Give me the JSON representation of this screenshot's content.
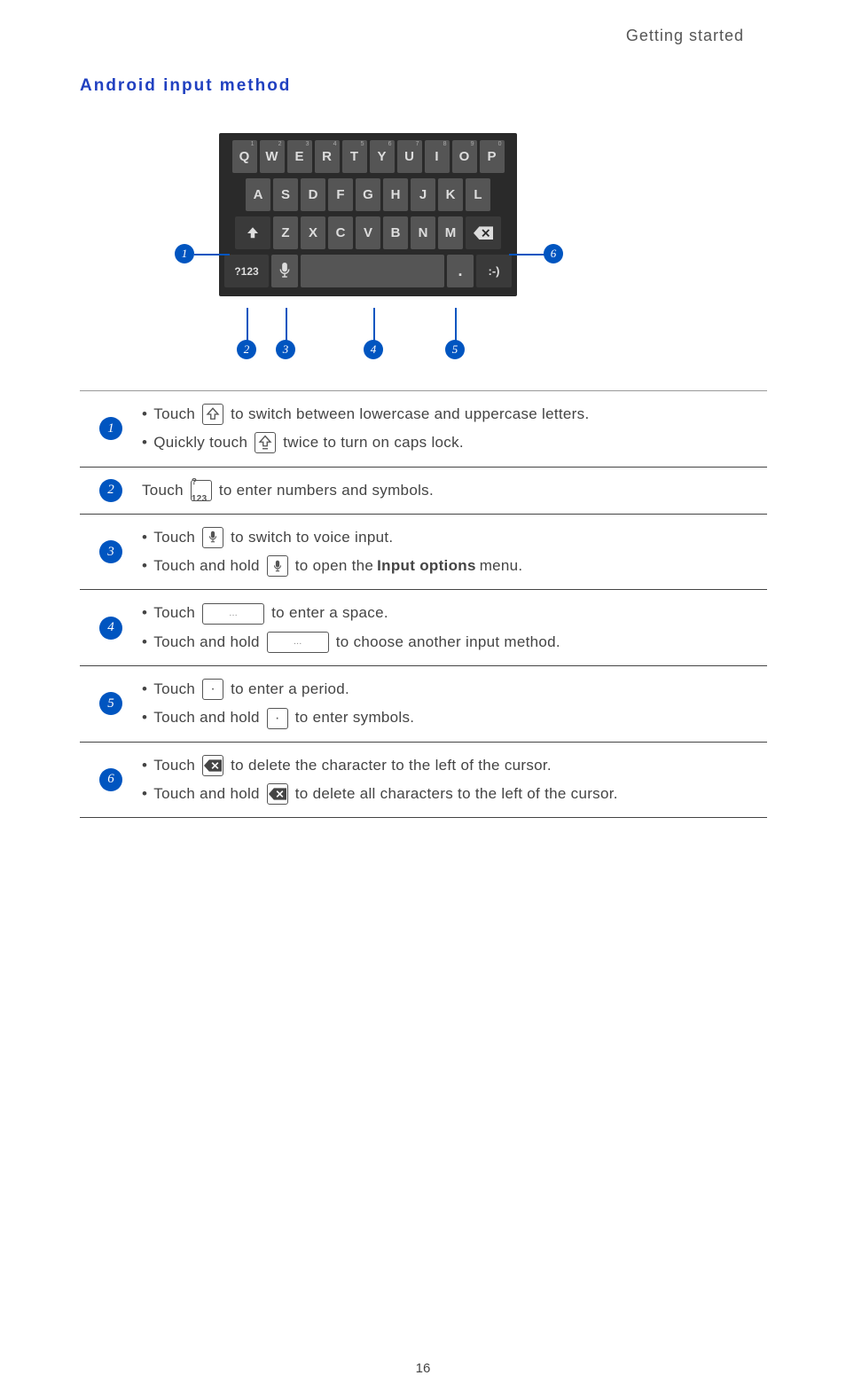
{
  "header": {
    "label": "Getting started"
  },
  "section": {
    "title": "Android input method"
  },
  "keyboard": {
    "row1": [
      "Q",
      "W",
      "E",
      "R",
      "T",
      "Y",
      "U",
      "I",
      "O",
      "P"
    ],
    "sup1": [
      "1",
      "2",
      "3",
      "4",
      "5",
      "6",
      "7",
      "8",
      "9",
      "0"
    ],
    "row2": [
      "A",
      "S",
      "D",
      "F",
      "G",
      "H",
      "J",
      "K",
      "L"
    ],
    "row3": [
      "Z",
      "X",
      "C",
      "V",
      "B",
      "N",
      "M"
    ],
    "numKey": "?123",
    "emoji": ":-)"
  },
  "callouts": {
    "c1": "1",
    "c2": "2",
    "c3": "3",
    "c4": "4",
    "c5": "5",
    "c6": "6"
  },
  "rows": [
    {
      "num": "1",
      "lines": [
        {
          "pre": "Touch",
          "icon": "shift",
          "post": "to switch between lowercase and uppercase letters."
        },
        {
          "pre": "Quickly touch",
          "icon": "shiftlock",
          "post": "twice to turn on caps lock."
        }
      ]
    },
    {
      "num": "2",
      "plain": {
        "pre": "Touch",
        "icon": "p123",
        "post": "to enter numbers and symbols."
      }
    },
    {
      "num": "3",
      "lines": [
        {
          "pre": "Touch",
          "icon": "mic",
          "post": "to switch to voice input."
        },
        {
          "pre": "Touch and hold",
          "icon": "mic",
          "post": "to open the",
          "bold": "Input options",
          "after": "menu."
        }
      ]
    },
    {
      "num": "4",
      "lines": [
        {
          "pre": "Touch",
          "icon": "space",
          "post": "to enter a space."
        },
        {
          "pre": "Touch and hold",
          "icon": "space",
          "post": "to choose another input method."
        }
      ]
    },
    {
      "num": "5",
      "lines": [
        {
          "pre": "Touch",
          "icon": "period",
          "post": "to enter a period."
        },
        {
          "pre": "Touch and hold",
          "icon": "period",
          "post": "to enter symbols."
        }
      ]
    },
    {
      "num": "6",
      "lines": [
        {
          "pre": "Touch",
          "icon": "bksp",
          "post": "to delete the character to the left of the cursor."
        },
        {
          "pre": "Touch and hold",
          "icon": "bksp",
          "post": "to delete all characters to the left of the cursor."
        }
      ]
    }
  ],
  "page": {
    "number": "16"
  },
  "colors": {
    "accent": "#0055c0",
    "heading": "#2040c0"
  }
}
